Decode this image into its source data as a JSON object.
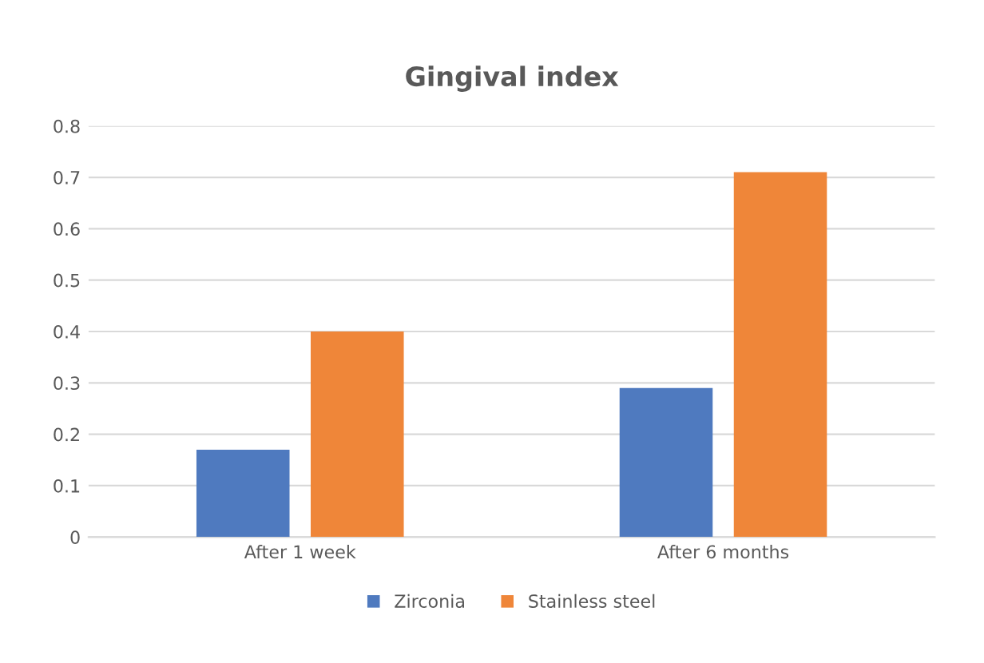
{
  "chart_data": {
    "type": "bar",
    "title": "Gingival index",
    "categories": [
      "After 1 week",
      "After 6 months"
    ],
    "series": [
      {
        "name": "Zirconia",
        "color": "#4f7abf",
        "values": [
          0.17,
          0.29
        ]
      },
      {
        "name": "Stainless steel",
        "color": "#ef8639",
        "values": [
          0.4,
          0.71
        ]
      }
    ],
    "ylim": [
      0,
      0.8
    ],
    "yticks": [
      0,
      0.1,
      0.2,
      0.3,
      0.4,
      0.5,
      0.6,
      0.7,
      0.8
    ],
    "grid": "y",
    "legend": "bottom"
  }
}
